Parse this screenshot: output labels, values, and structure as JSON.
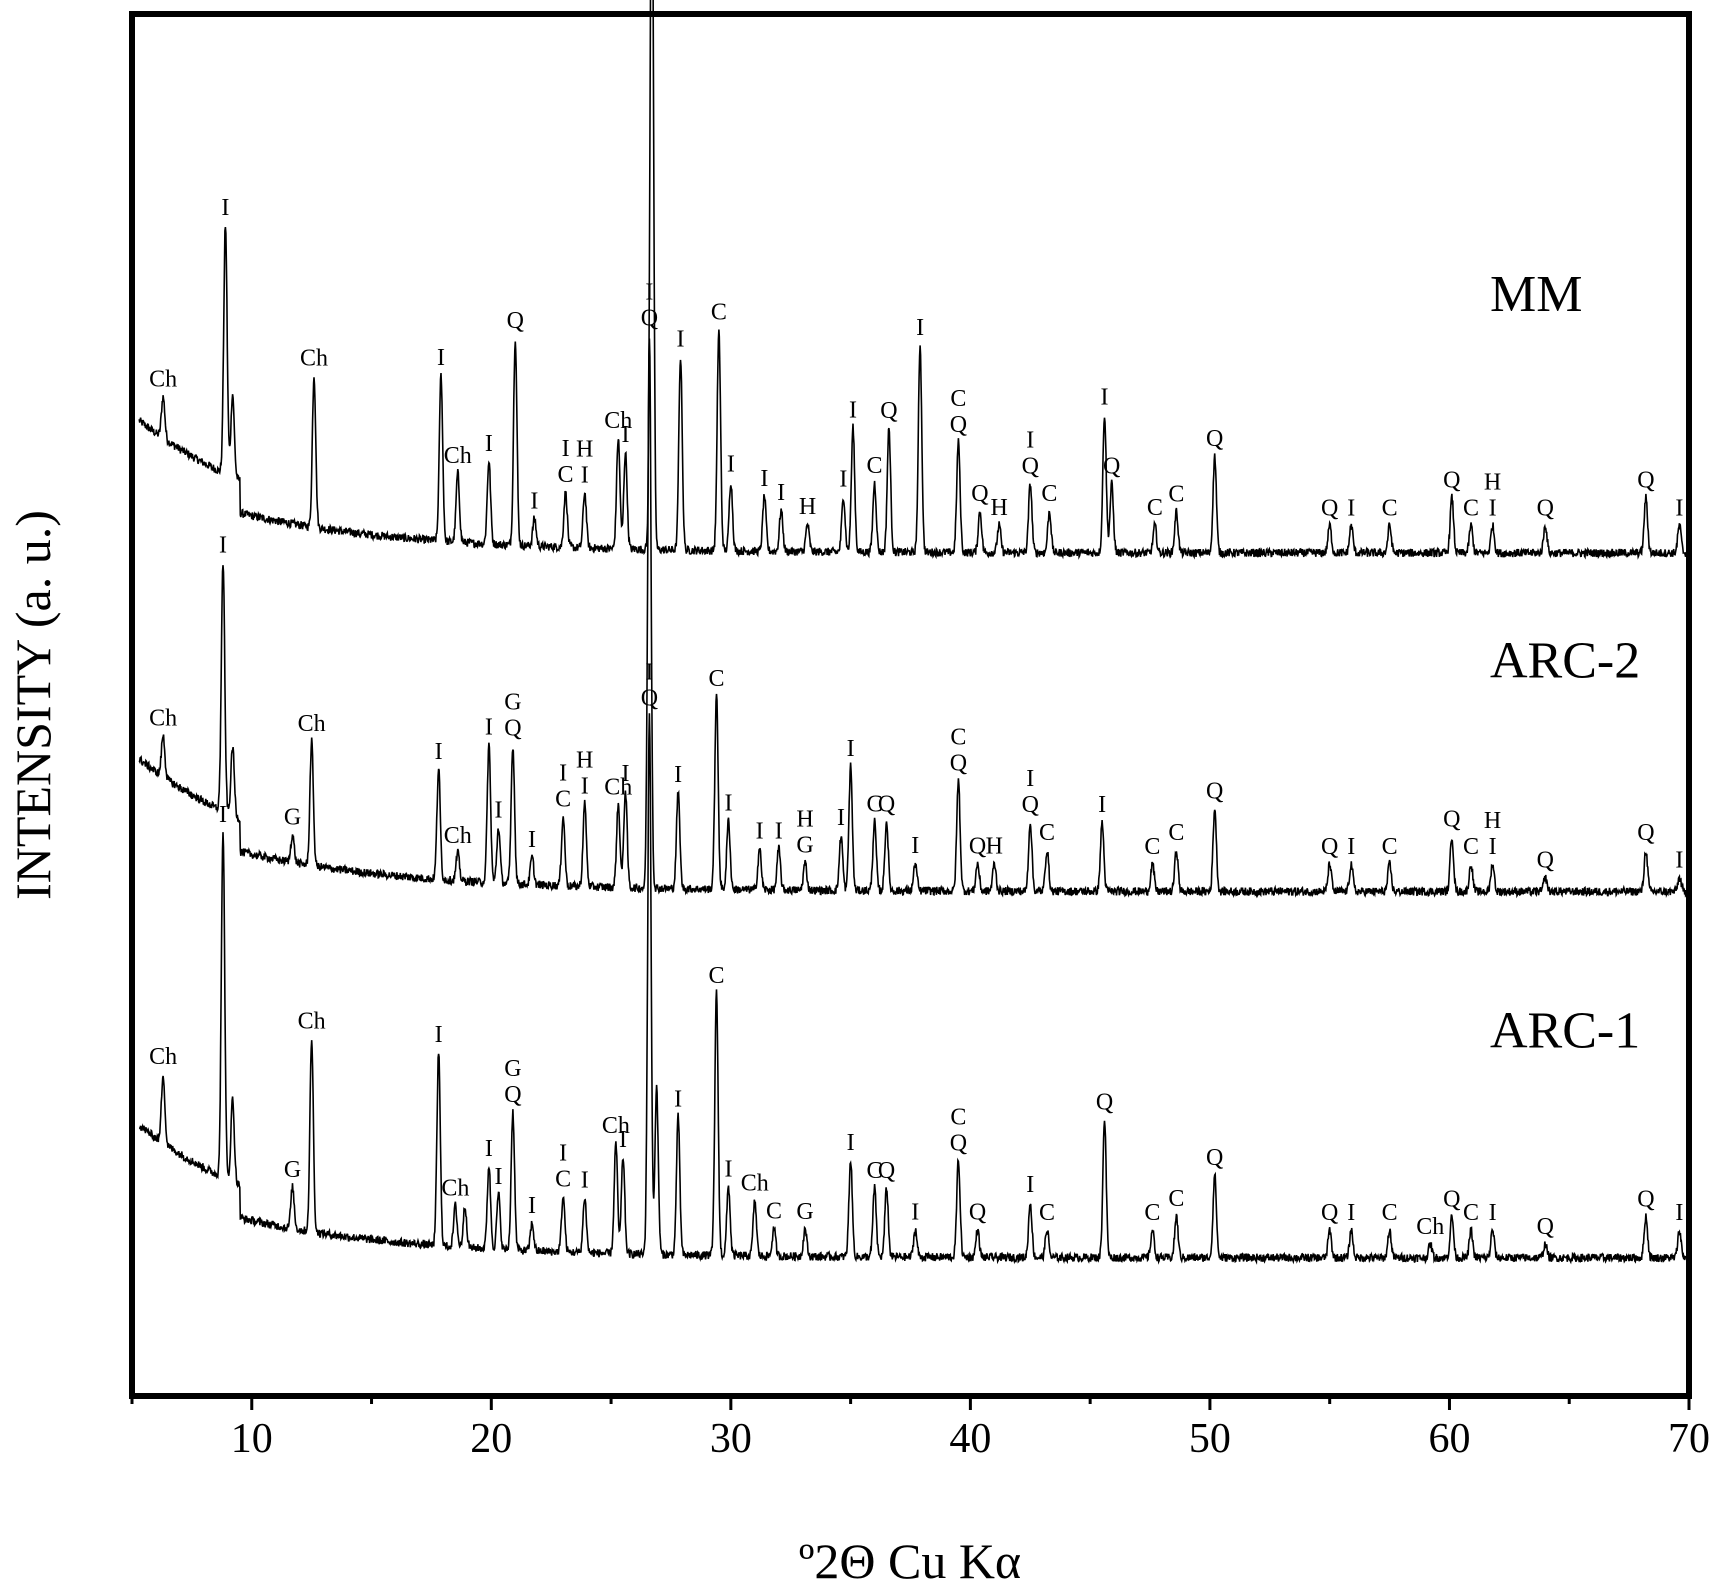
{
  "chart_data": {
    "type": "line",
    "title": "",
    "xlabel": "º2Θ Cu Kα",
    "ylabel": "INTENSITY (a. u.)",
    "xlim": [
      5,
      70
    ],
    "xticks": [
      10,
      20,
      30,
      40,
      50,
      60,
      70
    ],
    "yticks": [],
    "grid": false,
    "legend": "none",
    "line_color": "#000000",
    "series": [
      {
        "name": "MM",
        "baseline": 0.61,
        "decay": 0.1,
        "peaks": [
          {
            "x": 6.3,
            "h": 0.03,
            "label": "Ch"
          },
          {
            "x": 8.9,
            "h": 0.18,
            "label": "I"
          },
          {
            "x": 9.2,
            "h": 0.06,
            "label": ""
          },
          {
            "x": 12.6,
            "h": 0.11,
            "label": "Ch"
          },
          {
            "x": 17.9,
            "h": 0.12,
            "label": "I"
          },
          {
            "x": 18.6,
            "h": 0.05,
            "label": "Ch"
          },
          {
            "x": 19.9,
            "h": 0.06,
            "label": "I"
          },
          {
            "x": 21.0,
            "h": 0.15,
            "label": "Q"
          },
          {
            "x": 21.8,
            "h": 0.02,
            "label": "I"
          },
          {
            "x": 23.1,
            "h": 0.04,
            "label": "I\nC"
          },
          {
            "x": 23.9,
            "h": 0.04,
            "label": "H\nI"
          },
          {
            "x": 25.3,
            "h": 0.08,
            "label": "Ch"
          },
          {
            "x": 25.6,
            "h": 0.07,
            "label": "I"
          },
          {
            "x": 26.7,
            "h": 0.56,
            "label": "I\nQ"
          },
          {
            "x": 27.9,
            "h": 0.14,
            "label": "I"
          },
          {
            "x": 29.5,
            "h": 0.16,
            "label": "C"
          },
          {
            "x": 30.0,
            "h": 0.05,
            "label": "I"
          },
          {
            "x": 31.4,
            "h": 0.04,
            "label": "I"
          },
          {
            "x": 32.1,
            "h": 0.03,
            "label": "I"
          },
          {
            "x": 33.2,
            "h": 0.02,
            "label": "H"
          },
          {
            "x": 34.7,
            "h": 0.04,
            "label": "I"
          },
          {
            "x": 35.1,
            "h": 0.09,
            "label": "I"
          },
          {
            "x": 36.0,
            "h": 0.05,
            "label": "C"
          },
          {
            "x": 36.6,
            "h": 0.09,
            "label": "Q"
          },
          {
            "x": 37.9,
            "h": 0.15,
            "label": "I"
          },
          {
            "x": 39.5,
            "h": 0.08,
            "label": "C\nQ"
          },
          {
            "x": 40.4,
            "h": 0.03,
            "label": "Q"
          },
          {
            "x": 41.2,
            "h": 0.02,
            "label": "H"
          },
          {
            "x": 42.5,
            "h": 0.05,
            "label": "I\nQ"
          },
          {
            "x": 43.3,
            "h": 0.03,
            "label": "C"
          },
          {
            "x": 45.6,
            "h": 0.1,
            "label": "I"
          },
          {
            "x": 45.9,
            "h": 0.05,
            "label": "Q"
          },
          {
            "x": 47.7,
            "h": 0.02,
            "label": "C"
          },
          {
            "x": 48.6,
            "h": 0.03,
            "label": "C"
          },
          {
            "x": 50.2,
            "h": 0.07,
            "label": "Q"
          },
          {
            "x": 55.0,
            "h": 0.02,
            "label": "Q"
          },
          {
            "x": 55.9,
            "h": 0.02,
            "label": "I"
          },
          {
            "x": 57.5,
            "h": 0.02,
            "label": "C"
          },
          {
            "x": 60.1,
            "h": 0.04,
            "label": "Q"
          },
          {
            "x": 60.9,
            "h": 0.02,
            "label": "C"
          },
          {
            "x": 61.8,
            "h": 0.02,
            "label": "H\nI"
          },
          {
            "x": 64.0,
            "h": 0.02,
            "label": "Q"
          },
          {
            "x": 68.2,
            "h": 0.04,
            "label": "Q"
          },
          {
            "x": 69.6,
            "h": 0.02,
            "label": "I"
          }
        ]
      },
      {
        "name": "ARC-2",
        "baseline": 0.365,
        "decay": 0.1,
        "peaks": [
          {
            "x": 6.3,
            "h": 0.03,
            "label": "Ch"
          },
          {
            "x": 8.8,
            "h": 0.18,
            "label": "I"
          },
          {
            "x": 9.2,
            "h": 0.05,
            "label": ""
          },
          {
            "x": 11.7,
            "h": 0.02,
            "label": "G"
          },
          {
            "x": 12.5,
            "h": 0.09,
            "label": "Ch"
          },
          {
            "x": 17.8,
            "h": 0.08,
            "label": "I"
          },
          {
            "x": 18.6,
            "h": 0.02,
            "label": "Ch"
          },
          {
            "x": 19.9,
            "h": 0.1,
            "label": "I"
          },
          {
            "x": 20.3,
            "h": 0.04,
            "label": "I"
          },
          {
            "x": 20.9,
            "h": 0.1,
            "label": "G\nQ"
          },
          {
            "x": 21.7,
            "h": 0.02,
            "label": "I"
          },
          {
            "x": 23.0,
            "h": 0.05,
            "label": "I\nC"
          },
          {
            "x": 23.9,
            "h": 0.06,
            "label": "H\nI"
          },
          {
            "x": 25.3,
            "h": 0.06,
            "label": "Ch"
          },
          {
            "x": 25.6,
            "h": 0.07,
            "label": "I"
          },
          {
            "x": 26.6,
            "h": 0.4,
            "label": "I\nQ"
          },
          {
            "x": 27.8,
            "h": 0.07,
            "label": "I"
          },
          {
            "x": 29.4,
            "h": 0.14,
            "label": "C"
          },
          {
            "x": 29.9,
            "h": 0.05,
            "label": "I"
          },
          {
            "x": 31.2,
            "h": 0.03,
            "label": "I"
          },
          {
            "x": 32.0,
            "h": 0.03,
            "label": "I"
          },
          {
            "x": 33.1,
            "h": 0.02,
            "label": "H\nG"
          },
          {
            "x": 34.6,
            "h": 0.04,
            "label": "I"
          },
          {
            "x": 35.0,
            "h": 0.09,
            "label": "I"
          },
          {
            "x": 36.0,
            "h": 0.05,
            "label": "C"
          },
          {
            "x": 36.5,
            "h": 0.05,
            "label": "Q"
          },
          {
            "x": 37.7,
            "h": 0.02,
            "label": "I"
          },
          {
            "x": 39.5,
            "h": 0.08,
            "label": "C\nQ"
          },
          {
            "x": 40.3,
            "h": 0.02,
            "label": "Q"
          },
          {
            "x": 41.0,
            "h": 0.02,
            "label": "H"
          },
          {
            "x": 42.5,
            "h": 0.05,
            "label": "I\nQ"
          },
          {
            "x": 43.2,
            "h": 0.03,
            "label": "C"
          },
          {
            "x": 45.5,
            "h": 0.05,
            "label": "I"
          },
          {
            "x": 47.6,
            "h": 0.02,
            "label": "C"
          },
          {
            "x": 48.6,
            "h": 0.03,
            "label": "C"
          },
          {
            "x": 50.2,
            "h": 0.06,
            "label": "Q"
          },
          {
            "x": 55.0,
            "h": 0.02,
            "label": "Q"
          },
          {
            "x": 55.9,
            "h": 0.02,
            "label": "I"
          },
          {
            "x": 57.5,
            "h": 0.02,
            "label": "C"
          },
          {
            "x": 60.1,
            "h": 0.04,
            "label": "Q"
          },
          {
            "x": 60.9,
            "h": 0.02,
            "label": "C"
          },
          {
            "x": 61.8,
            "h": 0.02,
            "label": "H\nI"
          },
          {
            "x": 64.0,
            "h": 0.01,
            "label": "Q"
          },
          {
            "x": 68.2,
            "h": 0.03,
            "label": "Q"
          },
          {
            "x": 69.6,
            "h": 0.01,
            "label": "I"
          }
        ]
      },
      {
        "name": "ARC-1",
        "baseline": 0.1,
        "decay": 0.1,
        "peaks": [
          {
            "x": 6.3,
            "h": 0.05,
            "label": "Ch"
          },
          {
            "x": 8.8,
            "h": 0.25,
            "label": "I"
          },
          {
            "x": 9.2,
            "h": 0.06,
            "label": ""
          },
          {
            "x": 11.7,
            "h": 0.03,
            "label": "G"
          },
          {
            "x": 12.5,
            "h": 0.14,
            "label": "Ch"
          },
          {
            "x": 17.8,
            "h": 0.14,
            "label": "I"
          },
          {
            "x": 18.5,
            "h": 0.03,
            "label": "Ch"
          },
          {
            "x": 18.9,
            "h": 0.03,
            "label": ""
          },
          {
            "x": 19.9,
            "h": 0.06,
            "label": "I"
          },
          {
            "x": 20.3,
            "h": 0.04,
            "label": "I"
          },
          {
            "x": 20.9,
            "h": 0.1,
            "label": "G\nQ"
          },
          {
            "x": 21.7,
            "h": 0.02,
            "label": "I"
          },
          {
            "x": 23.0,
            "h": 0.04,
            "label": "I\nC"
          },
          {
            "x": 23.9,
            "h": 0.04,
            "label": "I"
          },
          {
            "x": 25.2,
            "h": 0.08,
            "label": "Ch"
          },
          {
            "x": 25.5,
            "h": 0.07,
            "label": "I"
          },
          {
            "x": 26.6,
            "h": 0.39,
            "label": "I\nQ"
          },
          {
            "x": 26.9,
            "h": 0.12,
            "label": ""
          },
          {
            "x": 27.8,
            "h": 0.1,
            "label": "I"
          },
          {
            "x": 29.4,
            "h": 0.19,
            "label": "C"
          },
          {
            "x": 29.9,
            "h": 0.05,
            "label": "I"
          },
          {
            "x": 31.0,
            "h": 0.04,
            "label": "Ch"
          },
          {
            "x": 31.8,
            "h": 0.02,
            "label": "C"
          },
          {
            "x": 33.1,
            "h": 0.02,
            "label": "G"
          },
          {
            "x": 35.0,
            "h": 0.07,
            "label": "I"
          },
          {
            "x": 36.0,
            "h": 0.05,
            "label": "C"
          },
          {
            "x": 36.5,
            "h": 0.05,
            "label": "Q"
          },
          {
            "x": 37.7,
            "h": 0.02,
            "label": "I"
          },
          {
            "x": 39.5,
            "h": 0.07,
            "label": "C\nQ"
          },
          {
            "x": 40.3,
            "h": 0.02,
            "label": "Q"
          },
          {
            "x": 42.5,
            "h": 0.04,
            "label": "I"
          },
          {
            "x": 43.2,
            "h": 0.02,
            "label": "C"
          },
          {
            "x": 45.6,
            "h": 0.1,
            "label": "Q"
          },
          {
            "x": 47.6,
            "h": 0.02,
            "label": "C"
          },
          {
            "x": 48.6,
            "h": 0.03,
            "label": "C"
          },
          {
            "x": 50.2,
            "h": 0.06,
            "label": "Q"
          },
          {
            "x": 55.0,
            "h": 0.02,
            "label": "Q"
          },
          {
            "x": 55.9,
            "h": 0.02,
            "label": "I"
          },
          {
            "x": 57.5,
            "h": 0.02,
            "label": "C"
          },
          {
            "x": 59.2,
            "h": 0.01,
            "label": "Ch"
          },
          {
            "x": 60.1,
            "h": 0.03,
            "label": "Q"
          },
          {
            "x": 60.9,
            "h": 0.02,
            "label": "C"
          },
          {
            "x": 61.8,
            "h": 0.02,
            "label": "I"
          },
          {
            "x": 64.0,
            "h": 0.01,
            "label": "Q"
          },
          {
            "x": 68.2,
            "h": 0.03,
            "label": "Q"
          },
          {
            "x": 69.6,
            "h": 0.02,
            "label": "I"
          }
        ]
      }
    ]
  }
}
